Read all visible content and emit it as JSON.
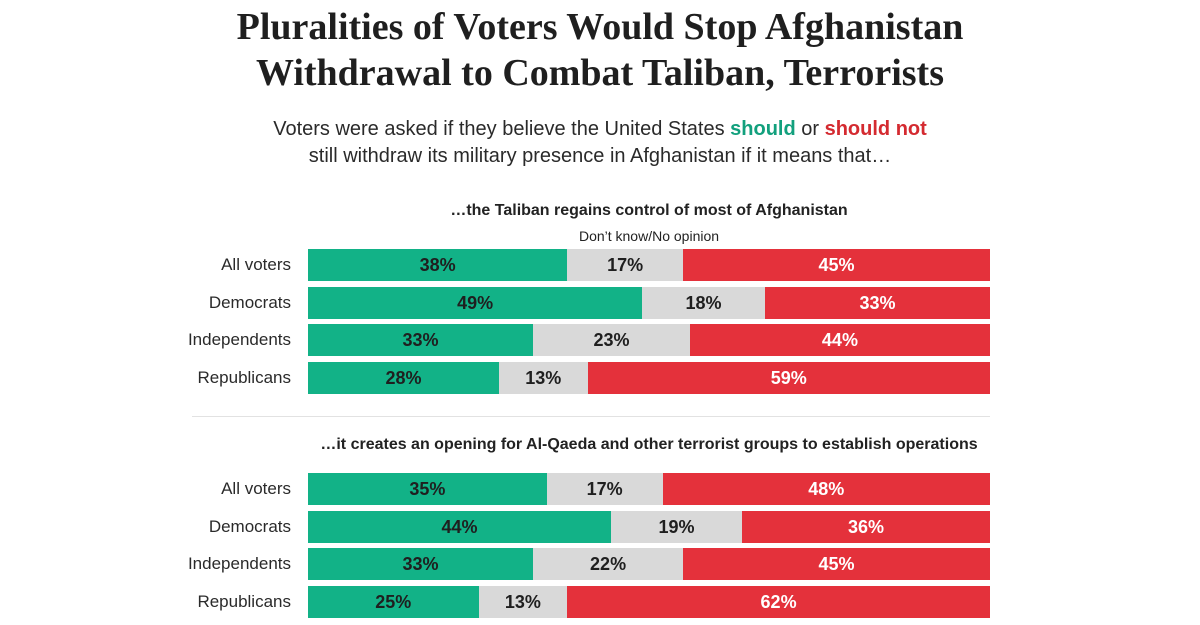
{
  "title_line1": "Pluralities of Voters Would Stop Afghanistan",
  "title_line2": "Withdrawal to Combat Taliban, Terrorists",
  "subtitle": {
    "part1": "Voters were asked if they believe the United States ",
    "should": "should",
    "part2": " or ",
    "should_not": "should not",
    "line2": "still withdraw its military presence in Afghanistan if it means that…"
  },
  "colors": {
    "should": "#12b287",
    "dont_know": "#d9d9d9",
    "should_not": "#e4313b"
  },
  "chart_data": [
    {
      "type": "bar",
      "orientation": "horizontal-stacked-100",
      "title": "…the Taliban regains control of most of Afghanistan",
      "legend_note": "Don’t know/No opinion",
      "categories": [
        "All voters",
        "Democrats",
        "Independents",
        "Republicans"
      ],
      "series": [
        {
          "name": "should",
          "values": [
            38,
            49,
            33,
            28
          ],
          "labels": [
            "38%",
            "49%",
            "33%",
            "28%"
          ]
        },
        {
          "name": "dont_know",
          "values": [
            17,
            18,
            23,
            13
          ],
          "labels": [
            "17%",
            "18%",
            "23%",
            "13%"
          ]
        },
        {
          "name": "should_not",
          "values": [
            45,
            33,
            44,
            59
          ],
          "labels": [
            "45%",
            "33%",
            "44%",
            "59%"
          ]
        }
      ]
    },
    {
      "type": "bar",
      "orientation": "horizontal-stacked-100",
      "title": "…it creates an opening for Al-Qaeda and other terrorist groups to establish operations",
      "categories": [
        "All voters",
        "Democrats",
        "Independents",
        "Republicans"
      ],
      "series": [
        {
          "name": "should",
          "values": [
            35,
            44,
            33,
            25
          ],
          "labels": [
            "35%",
            "44%",
            "33%",
            "25%"
          ]
        },
        {
          "name": "dont_know",
          "values": [
            17,
            19,
            22,
            13
          ],
          "labels": [
            "17%",
            "19%",
            "22%",
            "13%"
          ]
        },
        {
          "name": "should_not",
          "values": [
            48,
            36,
            45,
            62
          ],
          "labels": [
            "48%",
            "36%",
            "45%",
            "62%"
          ]
        }
      ]
    }
  ]
}
